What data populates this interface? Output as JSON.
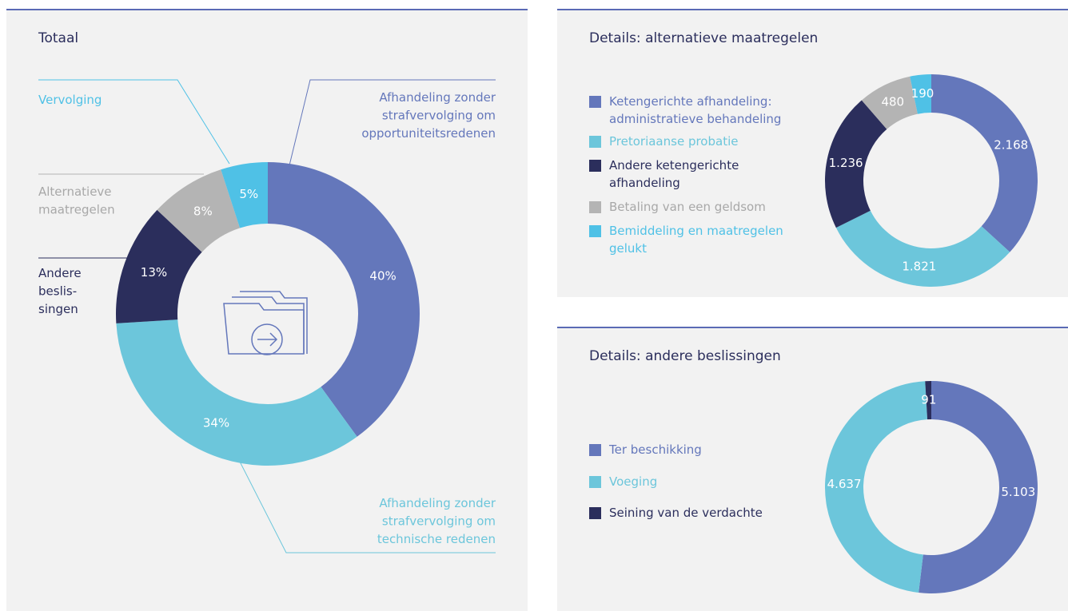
{
  "chart_data": [
    {
      "type": "donut",
      "title": "Totaal",
      "categories": [
        "Afhandeling zonder strafvervolging om opportuniteitsredenen",
        "Afhandeling zonder strafvervolging om technische redenen",
        "Andere beslis-singen",
        "Alternatieve maatregelen",
        "Vervolging"
      ],
      "values": [
        40,
        34,
        13,
        8,
        5
      ],
      "value_labels": [
        "40%",
        "34%",
        "13%",
        "8%",
        "5%"
      ],
      "colors": [
        "#6477bb",
        "#6cc6db",
        "#2b2e5c",
        "#b4b4b4",
        "#4fc1e6"
      ]
    },
    {
      "type": "donut",
      "title": "Details: alternatieve maatregelen",
      "categories": [
        "Ketengerichte afhandeling: administratieve behandeling",
        "Pretoriaanse probatie",
        "Andere ketengerichte afhandeling",
        "Betaling van een geldsom",
        "Bemiddeling en maatregelen gelukt"
      ],
      "values": [
        2168,
        1821,
        1236,
        480,
        190
      ],
      "value_labels": [
        "2.168",
        "1.821",
        "1.236",
        "480",
        "190"
      ],
      "colors": [
        "#6477bb",
        "#6cc6db",
        "#2b2e5c",
        "#b4b4b4",
        "#4fc1e6"
      ]
    },
    {
      "type": "donut",
      "title": "Details: andere beslissingen",
      "categories": [
        "Ter beschikking",
        "Voeging",
        "Seining van de verdachte"
      ],
      "values": [
        5103,
        4637,
        91
      ],
      "value_labels": [
        "5.103",
        "4.637",
        "91"
      ],
      "colors": [
        "#6477bb",
        "#6cc6db",
        "#2b2e5c"
      ]
    }
  ]
}
